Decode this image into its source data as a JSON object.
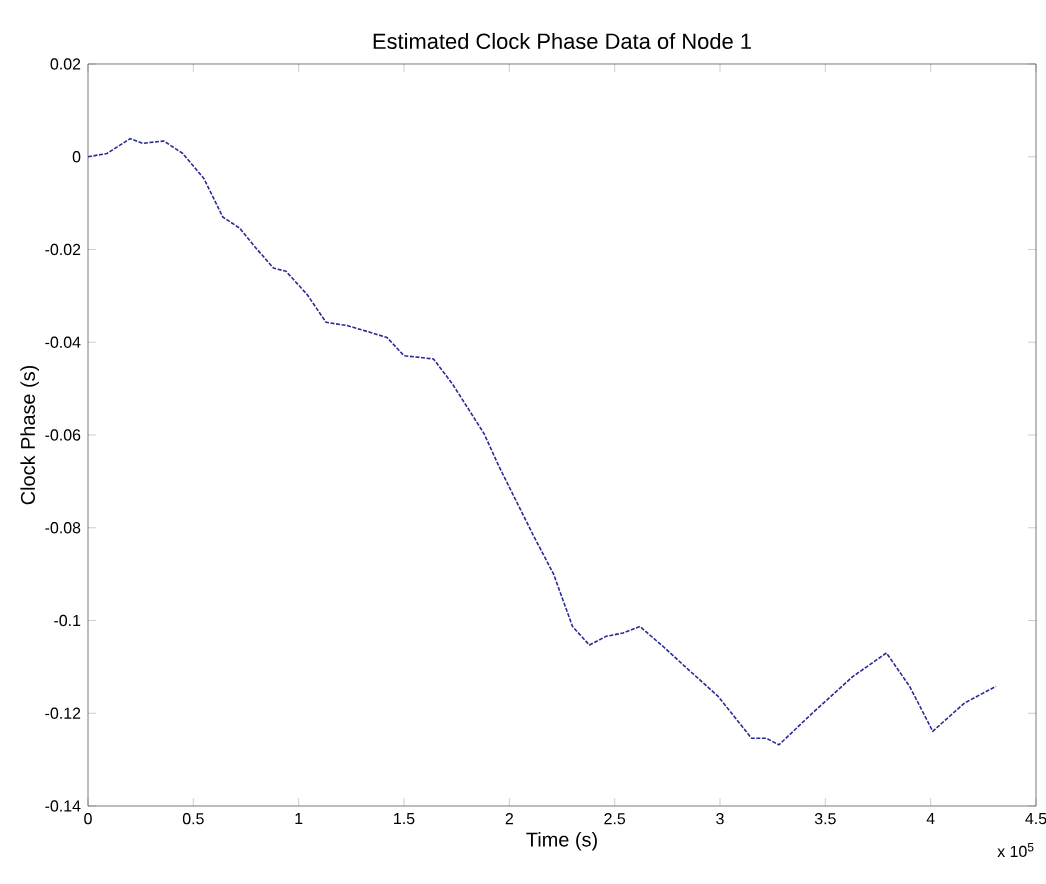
{
  "chart_data": {
    "type": "line",
    "title": "Estimated Clock Phase Data of Node 1",
    "xlabel": "Time (s)",
    "ylabel": "Clock Phase (s)",
    "annotations": [
      "x 10$^{5}$"
    ],
    "xlim": [
      0,
      4.5
    ],
    "ylim": [
      -0.14,
      0.02
    ],
    "xticks": [
      0,
      0.5,
      1,
      1.5,
      2,
      2.5,
      3,
      3.5,
      4,
      4.5
    ],
    "yticks": [
      -0.14,
      -0.12,
      -0.1,
      -0.08,
      -0.06,
      -0.04,
      -0.02,
      0,
      0.02
    ],
    "line_style": "dashed",
    "series": [
      {
        "color": "#2a2a96",
        "x": [
          0,
          0.09,
          0.2,
          0.26,
          0.36,
          0.45,
          0.55,
          0.64,
          0.72,
          0.79,
          0.88,
          0.94,
          1.04,
          1.13,
          1.23,
          1.32,
          1.42,
          1.5,
          1.64,
          1.73,
          1.88,
          1.95,
          2.11,
          2.21,
          2.3,
          2.38,
          2.46,
          2.54,
          2.62,
          2.73,
          2.85,
          2.99,
          3.15,
          3.22,
          3.28,
          3.44,
          3.63,
          3.79,
          3.9,
          4.01,
          4.16,
          4.31
        ],
        "values": [
          0,
          0.0007,
          0.0039,
          0.0029,
          0.0034,
          0.0007,
          -0.0047,
          -0.013,
          -0.0154,
          -0.0193,
          -0.024,
          -0.0247,
          -0.0297,
          -0.0357,
          -0.0364,
          -0.0376,
          -0.039,
          -0.0429,
          -0.0436,
          -0.049,
          -0.0597,
          -0.0667,
          -0.0813,
          -0.09,
          -0.1013,
          -0.1053,
          -0.1034,
          -0.1027,
          -0.1013,
          -0.1056,
          -0.1106,
          -0.1163,
          -0.1254,
          -0.1254,
          -0.1268,
          -0.1199,
          -0.1121,
          -0.107,
          -0.1142,
          -0.1239,
          -0.1178,
          -0.1142
        ]
      }
    ]
  }
}
